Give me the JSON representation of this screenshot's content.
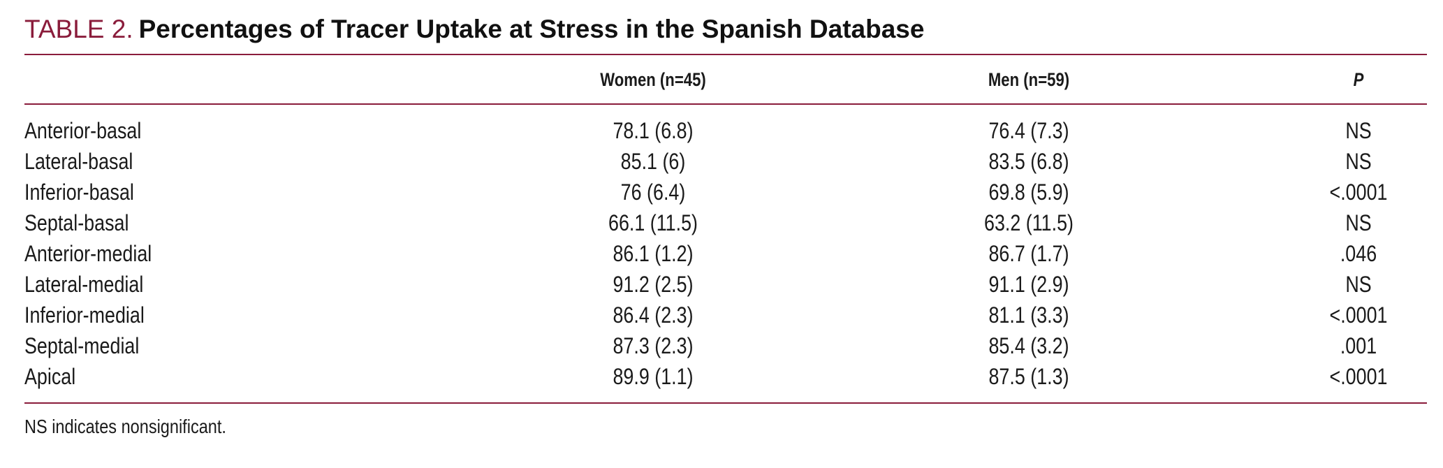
{
  "table": {
    "label": "TABLE 2.",
    "title": "Percentages of Tracer Uptake at Stress in the Spanish Database",
    "columns": {
      "women": "Women (n=45)",
      "men": "Men (n=59)",
      "p": "P"
    },
    "rows": [
      {
        "segment": "Anterior-basal",
        "women": "78.1 (6.8)",
        "men": "76.4 (7.3)",
        "p": "NS"
      },
      {
        "segment": "Lateral-basal",
        "women": "85.1 (6)",
        "men": "83.5 (6.8)",
        "p": "NS"
      },
      {
        "segment": "Inferior-basal",
        "women": "76 (6.4)",
        "men": "69.8 (5.9)",
        "p": "<.0001"
      },
      {
        "segment": "Septal-basal",
        "women": "66.1 (11.5)",
        "men": "63.2 (11.5)",
        "p": "NS"
      },
      {
        "segment": "Anterior-medial",
        "women": "86.1 (1.2)",
        "men": "86.7 (1.7)",
        "p": ".046"
      },
      {
        "segment": "Lateral-medial",
        "women": "91.2 (2.5)",
        "men": "91.1 (2.9)",
        "p": "NS"
      },
      {
        "segment": "Inferior-medial",
        "women": "86.4 (2.3)",
        "men": "81.1 (3.3)",
        "p": "<.0001"
      },
      {
        "segment": "Septal-medial",
        "women": "87.3 (2.3)",
        "men": "85.4 (3.2)",
        "p": ".001"
      },
      {
        "segment": "Apical",
        "women": "89.9 (1.1)",
        "men": "87.5 (1.3)",
        "p": "<.0001"
      }
    ],
    "footnote": "NS indicates nonsignificant."
  },
  "colors": {
    "accent": "#8a1c3b",
    "text": "#1a1a1a"
  }
}
